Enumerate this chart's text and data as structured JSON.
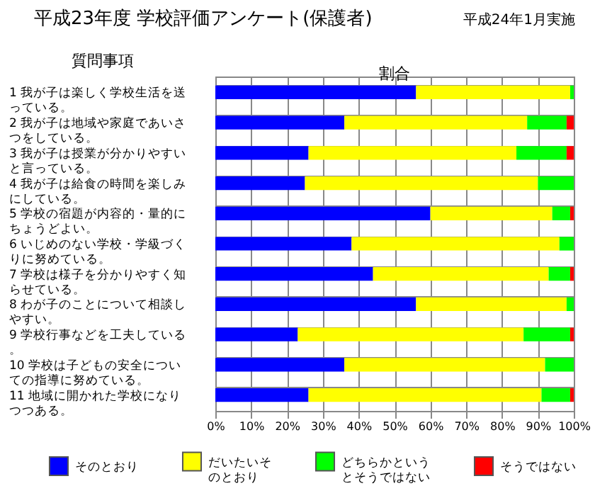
{
  "chart_data": {
    "type": "bar",
    "orientation": "horizontal",
    "stacked": true,
    "title": "平成23年度 学校評価アンケート(保護者)",
    "subtitle": "平成24年1月実施",
    "xlabel": "割合",
    "ylabel": "質問事項",
    "categories": [
      "1 我が子は楽しく学校生活を送っている。",
      "2 我が子は地域や家庭であいさつをしている。",
      "3 我が子は授業が分かりやすいと言っている。",
      "4 我が子は給食の時間を楽しみにしている。",
      "5 学校の宿題が内容的・量的にちょうどよい。",
      "6 いじめのない学校・学級づくりに努めている。",
      "7 学校は様子を分かりやすく知らせている。",
      "8 わが子のことについて相談しやすい。",
      "9 学校行事などを工夫している。",
      "10 学校は子どもの安全についての指導に努めている。",
      "11 地域に開かれた学校になりつつある。"
    ],
    "series": [
      {
        "name": "そのとおり",
        "color": "#0000ff",
        "values": [
          56,
          36,
          26,
          25,
          60,
          38,
          44,
          56,
          23,
          36,
          26
        ]
      },
      {
        "name": "だいたいそのとおり",
        "color": "#ffff00",
        "values": [
          43,
          51,
          58,
          65,
          34,
          58,
          49,
          42,
          63,
          56,
          65
        ]
      },
      {
        "name": "どちらかというとそうではない",
        "color": "#00ff00",
        "values": [
          1,
          11,
          14,
          10,
          5,
          4,
          6,
          2,
          13,
          8,
          8
        ]
      },
      {
        "name": "そうではない",
        "color": "#ff0000",
        "values": [
          0,
          2,
          2,
          0,
          1,
          0,
          1,
          0,
          1,
          0,
          1
        ]
      }
    ],
    "xlim": [
      0,
      100
    ],
    "xticks": [
      {
        "value": 0,
        "label": "0%"
      },
      {
        "value": 10,
        "label": "10%"
      },
      {
        "value": 20,
        "label": "20%"
      },
      {
        "value": 30,
        "label": "30%"
      },
      {
        "value": 40,
        "label": "40%"
      },
      {
        "value": 50,
        "label": "50%"
      },
      {
        "value": 60,
        "label": "60%"
      },
      {
        "value": 70,
        "label": "70%"
      },
      {
        "value": 80,
        "label": "80%"
      },
      {
        "value": 90,
        "label": "90%"
      },
      {
        "value": 100,
        "label": "100%"
      }
    ],
    "grid": true,
    "legend": "bottom"
  }
}
